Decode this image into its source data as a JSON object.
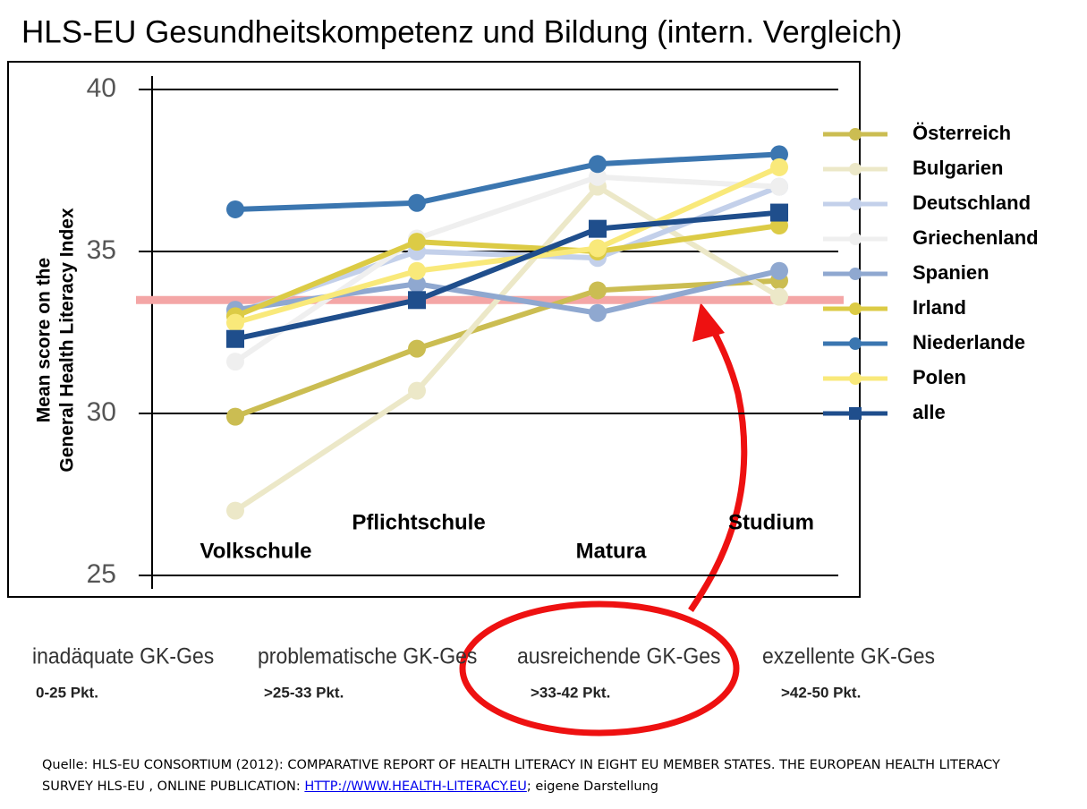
{
  "chart_data": {
    "type": "line",
    "title": "HLS-EU Gesundheitskompetenz und Bildung (intern. Vergleich)",
    "ylabel": [
      "Mean score on the",
      "General Health Literacy Index"
    ],
    "categories": [
      "Volkschule",
      "Pflichtschule",
      "Matura",
      "Studium"
    ],
    "ylim": [
      25,
      40
    ],
    "yticks": [
      25,
      30,
      35,
      40
    ],
    "grid": true,
    "reference_line": {
      "value": 33.5,
      "color": "#f4a6a6"
    },
    "series": [
      {
        "name": "Österreich",
        "color": "#cbbd52",
        "marker": "circle",
        "values": [
          29.9,
          32.0,
          33.8,
          34.1
        ]
      },
      {
        "name": "Bulgarien",
        "color": "#ece8c8",
        "marker": "circle",
        "values": [
          27.0,
          30.7,
          37.0,
          33.6
        ]
      },
      {
        "name": "Deutschland",
        "color": "#c3d0ea",
        "marker": "circle",
        "values": [
          33.1,
          35.0,
          34.8,
          37.0
        ]
      },
      {
        "name": "Griechenland",
        "color": "#efefef",
        "marker": "circle",
        "values": [
          31.6,
          35.4,
          37.3,
          37.0
        ]
      },
      {
        "name": "Spanien",
        "color": "#8fa8d0",
        "marker": "circle",
        "values": [
          33.2,
          34.0,
          33.1,
          34.4
        ]
      },
      {
        "name": "Irland",
        "color": "#dccb45",
        "marker": "circle",
        "values": [
          33.0,
          35.3,
          35.0,
          35.8
        ]
      },
      {
        "name": "Niederlande",
        "color": "#3b76b0",
        "marker": "circle",
        "values": [
          36.3,
          36.5,
          37.7,
          38.0
        ]
      },
      {
        "name": "Polen",
        "color": "#f9e97a",
        "marker": "circle",
        "values": [
          32.8,
          34.4,
          35.1,
          37.6
        ]
      },
      {
        "name": "alle",
        "color": "#1f4e8c",
        "marker": "square",
        "values": [
          32.3,
          33.5,
          35.7,
          36.2
        ]
      }
    ]
  },
  "bands": [
    {
      "name": "inadäquate GK-Ges",
      "range": "0-25 Pkt."
    },
    {
      "name": "problematische GK-Ges",
      "range": ">25-33 Pkt."
    },
    {
      "name": "ausreichende GK-Ges",
      "range": ">33-42 Pkt."
    },
    {
      "name": "exzellente GK-Ges",
      "range": ">42-50 Pkt."
    }
  ],
  "source": {
    "text": "Quelle: HLS-EU CONSORTIUM (2012): COMPARATIVE REPORT OF HEALTH LITERACY IN EIGHT EU MEMBER STATES. THE EUROPEAN HEALTH LITERACY SURVEY HLS-EU , ONLINE PUBLICATION: ",
    "link": "HTTP://WWW.HEALTH-LITERACY.EU",
    "suffix": "; eigene Darstellung"
  }
}
